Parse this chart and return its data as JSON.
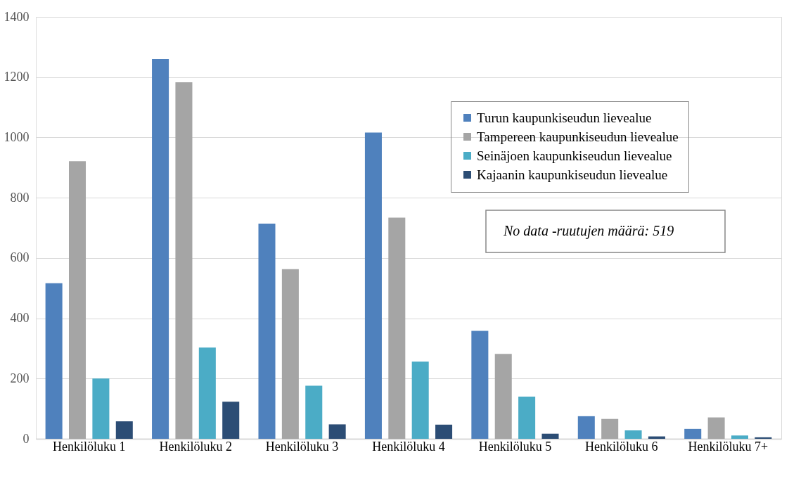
{
  "chart_data": {
    "type": "bar",
    "categories": [
      "Henkilöluku 1",
      "Henkilöluku 2",
      "Henkilöluku 3",
      "Henkilöluku 4",
      "Henkilöluku 5",
      "Henkilöluku 6",
      "Henkilöluku 7+"
    ],
    "series": [
      {
        "name": "Turun kaupunkiseudun lievealue",
        "color": "#4f81bd",
        "values": [
          516,
          1260,
          714,
          1016,
          358,
          75,
          33
        ]
      },
      {
        "name": "Tampereen kaupunkiseudun lievealue",
        "color": "#a5a5a5",
        "values": [
          921,
          1183,
          563,
          734,
          282,
          66,
          71
        ]
      },
      {
        "name": "Seinäjoen kaupunkiseudun lievealue",
        "color": "#4bacc6",
        "values": [
          200,
          303,
          176,
          256,
          140,
          28,
          11
        ]
      },
      {
        "name": "Kajaanin kaupunkiseudun lievealue",
        "color": "#2c4d75",
        "values": [
          58,
          123,
          48,
          47,
          17,
          8,
          5
        ]
      }
    ],
    "ylim": [
      0,
      1400
    ],
    "yticks": [
      0,
      200,
      400,
      600,
      800,
      1000,
      1200,
      1400
    ],
    "grid": "y",
    "legend": "top right",
    "annotations": [
      "No data -ruutujen määrä: 519"
    ]
  }
}
